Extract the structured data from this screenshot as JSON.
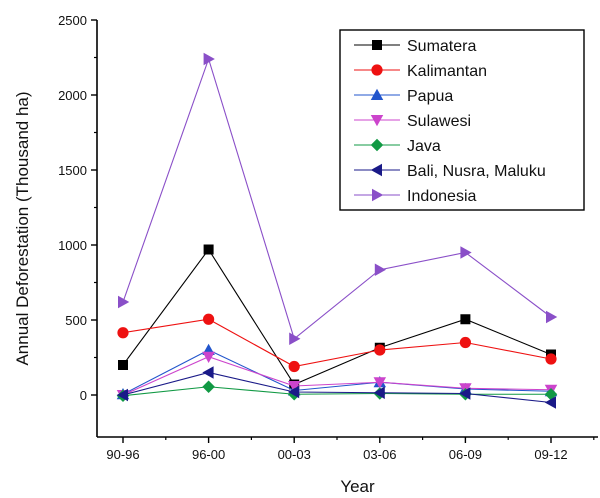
{
  "chart_data": {
    "type": "line",
    "title": "",
    "xlabel": "Year",
    "ylabel": "Annual Deforestation (Thousand ha)",
    "categories": [
      "90-96",
      "96-00",
      "00-03",
      "03-06",
      "06-09",
      "09-12"
    ],
    "ylim": [
      -280,
      2500
    ],
    "yticks": [
      0,
      500,
      1000,
      1500,
      2000,
      2500
    ],
    "grid": false,
    "legend_position": "top-right",
    "series": [
      {
        "name": "Sumatera",
        "color": "#000000",
        "marker": "square",
        "values": [
          200,
          970,
          70,
          315,
          505,
          270
        ]
      },
      {
        "name": "Kalimantan",
        "color": "#ee1111",
        "marker": "circle",
        "values": [
          415,
          505,
          190,
          300,
          350,
          240
        ]
      },
      {
        "name": "Papua",
        "color": "#2255cc",
        "marker": "triangle-up",
        "values": [
          5,
          300,
          30,
          85,
          40,
          25
        ]
      },
      {
        "name": "Sulawesi",
        "color": "#cc44cc",
        "marker": "triangle-down",
        "values": [
          0,
          255,
          60,
          85,
          45,
          35
        ]
      },
      {
        "name": "Java",
        "color": "#119944",
        "marker": "diamond",
        "values": [
          -5,
          55,
          5,
          10,
          5,
          5
        ]
      },
      {
        "name": "Bali, Nusra, Maluku",
        "color": "#1a1a88",
        "marker": "triangle-left",
        "values": [
          0,
          150,
          20,
          15,
          10,
          -50
        ]
      },
      {
        "name": "Indonesia",
        "color": "#8a4fc8",
        "marker": "triangle-right",
        "values": [
          620,
          2240,
          375,
          835,
          950,
          520
        ]
      }
    ]
  }
}
